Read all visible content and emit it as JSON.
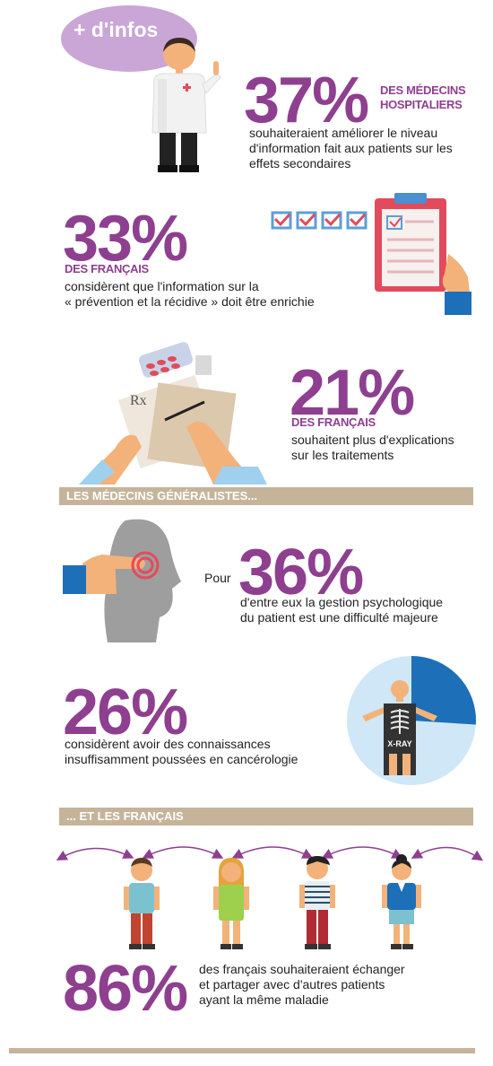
{
  "badge": "+ d'infos",
  "s1": {
    "pct": "37%",
    "label_line1": "DES MÉDECINS",
    "label_line2": "HOSPITALIERS",
    "text": "souhaiteraient améliorer le niveau d'information fait aux patients sur les effets secondaires"
  },
  "s2": {
    "pct": "33%",
    "label": "DES FRANÇAIS",
    "text_line1": "considèrent que l'information sur la",
    "text_line2": "« prévention et la récidive » doit être enrichie"
  },
  "s3": {
    "pct": "21%",
    "label": "DES FRANÇAIS",
    "text_line1": "souhaitent plus d'explications",
    "text_line2": "sur les traitements",
    "rx": "Rx"
  },
  "band1": "LES MÉDECINS GÉNÉRALISTES...",
  "s4": {
    "prefix": "Pour",
    "pct": "36%",
    "text_line1": "d'entre eux la gestion psychologique",
    "text_line2": "du patient est une difficulté majeure"
  },
  "s5": {
    "pct": "26%",
    "text_line1": "considèrent avoir des connaissances",
    "text_line2": "insuffisamment poussées en cancérologie",
    "xray_label": "X-RAY",
    "pie_fraction": 0.26
  },
  "band2": "... ET LES FRANÇAIS",
  "s6": {
    "pct": "86%",
    "text_line1": "des français souhaiteraient échanger",
    "text_line2": "et partager avec d'autres patients",
    "text_line3": "ayant la même maladie"
  },
  "colors": {
    "purple": "#8e3f8f",
    "band": "#c6b49a",
    "badge": "#c9a6d6",
    "red": "#e24b5b",
    "blue": "#1d6fb8"
  }
}
